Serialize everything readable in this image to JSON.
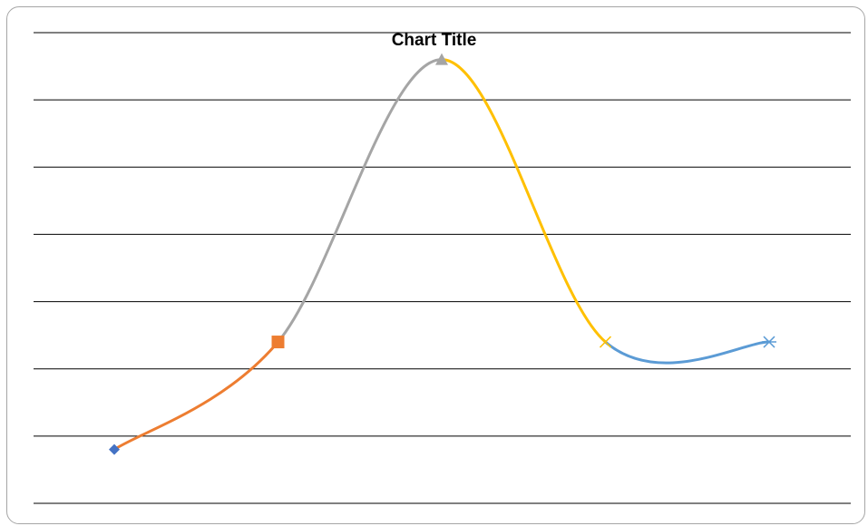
{
  "chart_data": {
    "type": "line",
    "title": "Chart Title",
    "xlabel": "",
    "ylabel": "",
    "grid": true,
    "smooth": true,
    "points": [
      {
        "x": 1,
        "y": 0.8,
        "marker": "diamond",
        "marker_color": "#4472c4"
      },
      {
        "x": 2,
        "y": 2.4,
        "marker": "square",
        "marker_color": "#ed7d31"
      },
      {
        "x": 3,
        "y": 6.6,
        "marker": "triangle",
        "marker_color": "#a5a5a5"
      },
      {
        "x": 4,
        "y": 2.4,
        "marker": "x",
        "marker_color": "#ffc000"
      },
      {
        "x": 5,
        "y": 2.4,
        "marker": "star",
        "marker_color": "#5b9bd5"
      }
    ],
    "segment_colors": [
      "#ed7d31",
      "#a5a5a5",
      "#ffc000",
      "#5b9bd5"
    ],
    "gridline_color": "#000000"
  }
}
